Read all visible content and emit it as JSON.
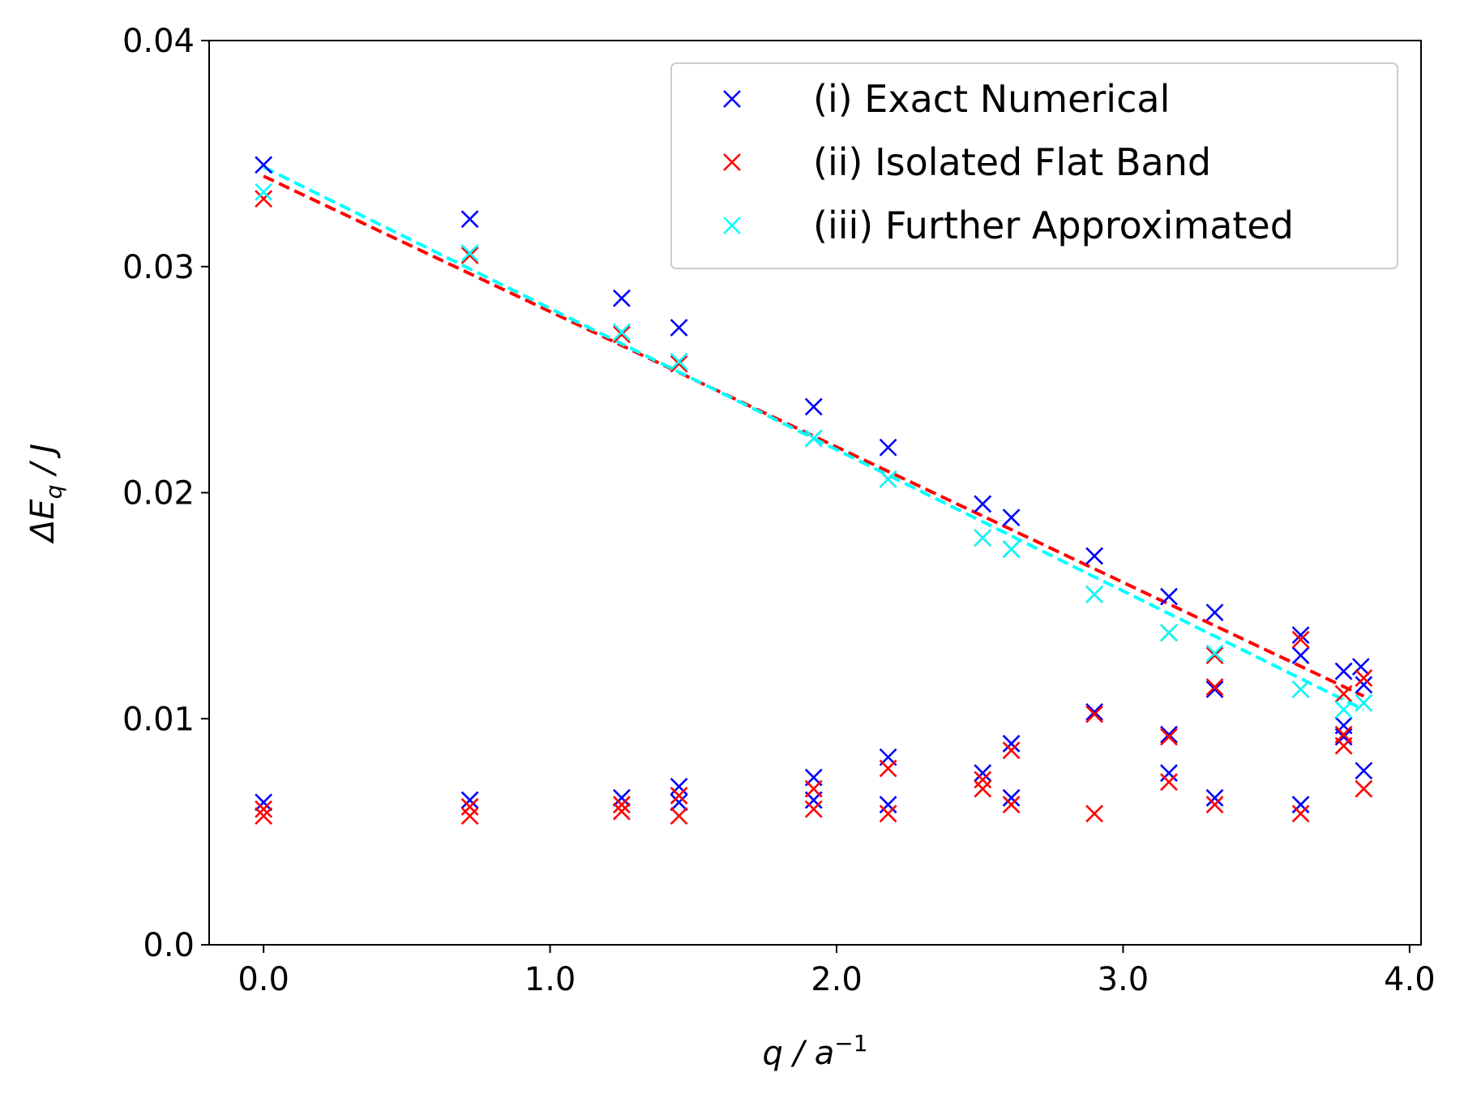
{
  "chart_data": {
    "type": "scatter",
    "title": "",
    "xlabel": "q / a",
    "xlabel_sup": "−1",
    "ylabel_prefix": "ΔE",
    "ylabel_sub": "q",
    "ylabel_suffix": " / J",
    "xlim": [
      -0.19,
      4.04
    ],
    "ylim": [
      0.0,
      0.04
    ],
    "xticks": [
      0.0,
      1.0,
      2.0,
      3.0,
      4.0
    ],
    "xtick_labels": [
      "0.0",
      "1.0",
      "2.0",
      "3.0",
      "4.0"
    ],
    "yticks": [
      0.0,
      0.01,
      0.02,
      0.03,
      0.04
    ],
    "ytick_labels": [
      "0.0",
      "0.01",
      "0.02",
      "0.03",
      "0.04"
    ],
    "grid": false,
    "legend_position": "top-right",
    "series": [
      {
        "name": "(i) Exact Numerical",
        "color": "#0000ff",
        "marker": "x",
        "upper": [
          [
            0.0,
            0.0345
          ],
          [
            0.72,
            0.0321
          ],
          [
            1.25,
            0.0286
          ],
          [
            1.45,
            0.0273
          ],
          [
            1.92,
            0.0238
          ],
          [
            2.18,
            0.022
          ],
          [
            2.51,
            0.0195
          ],
          [
            2.61,
            0.0189
          ],
          [
            2.9,
            0.0172
          ],
          [
            3.16,
            0.0154
          ],
          [
            3.32,
            0.0147
          ],
          [
            3.62,
            0.0137
          ],
          [
            3.62,
            0.0128
          ],
          [
            3.77,
            0.0121
          ],
          [
            3.83,
            0.0123
          ],
          [
            3.84,
            0.0115
          ]
        ],
        "lower": [
          [
            0.0,
            0.0063
          ],
          [
            0.72,
            0.0064
          ],
          [
            1.25,
            0.0065
          ],
          [
            1.45,
            0.007
          ],
          [
            1.45,
            0.0063
          ],
          [
            1.92,
            0.0074
          ],
          [
            1.92,
            0.0064
          ],
          [
            2.18,
            0.0083
          ],
          [
            2.18,
            0.0062
          ],
          [
            2.51,
            0.0076
          ],
          [
            2.61,
            0.0089
          ],
          [
            2.61,
            0.0065
          ],
          [
            2.9,
            0.0103
          ],
          [
            3.16,
            0.0093
          ],
          [
            3.16,
            0.0076
          ],
          [
            3.32,
            0.0113
          ],
          [
            3.32,
            0.0065
          ],
          [
            3.62,
            0.0062
          ],
          [
            3.77,
            0.0097
          ],
          [
            3.77,
            0.0092
          ],
          [
            3.84,
            0.0077
          ]
        ]
      },
      {
        "name": "(ii) Isolated Flat Band",
        "color": "#ff0000",
        "marker": "x",
        "upper": [
          [
            0.0,
            0.033
          ],
          [
            0.72,
            0.0305
          ],
          [
            1.25,
            0.027
          ],
          [
            1.45,
            0.0257
          ],
          [
            1.92,
            0.0224
          ],
          [
            2.18,
            0.0206
          ],
          [
            2.51,
            0.018
          ],
          [
            2.61,
            0.0175
          ],
          [
            2.9,
            0.0155
          ],
          [
            3.16,
            0.0138
          ],
          [
            3.32,
            0.0128
          ],
          [
            3.62,
            0.0135
          ],
          [
            3.62,
            0.0113
          ],
          [
            3.77,
            0.0111
          ],
          [
            3.84,
            0.0118
          ],
          [
            3.84,
            0.0107
          ]
        ],
        "lower": [
          [
            0.0,
            0.006
          ],
          [
            0.0,
            0.0057
          ],
          [
            0.72,
            0.0061
          ],
          [
            0.72,
            0.0057
          ],
          [
            1.25,
            0.0062
          ],
          [
            1.25,
            0.0059
          ],
          [
            1.45,
            0.0066
          ],
          [
            1.45,
            0.0057
          ],
          [
            1.92,
            0.0069
          ],
          [
            1.92,
            0.006
          ],
          [
            2.18,
            0.0078
          ],
          [
            2.18,
            0.0058
          ],
          [
            2.51,
            0.0073
          ],
          [
            2.51,
            0.0069
          ],
          [
            2.61,
            0.0086
          ],
          [
            2.61,
            0.0062
          ],
          [
            2.9,
            0.0102
          ],
          [
            2.9,
            0.0058
          ],
          [
            3.16,
            0.0092
          ],
          [
            3.16,
            0.0072
          ],
          [
            3.32,
            0.0114
          ],
          [
            3.32,
            0.0062
          ],
          [
            3.62,
            0.0058
          ],
          [
            3.77,
            0.0093
          ],
          [
            3.77,
            0.0088
          ],
          [
            3.84,
            0.0069
          ]
        ]
      },
      {
        "name": "(iii) Further Approximated",
        "color": "#00ffff",
        "marker": "x",
        "upper": [
          [
            0.0,
            0.0333
          ],
          [
            0.72,
            0.0306
          ],
          [
            1.25,
            0.0271
          ],
          [
            1.45,
            0.0258
          ],
          [
            1.92,
            0.0224
          ],
          [
            2.18,
            0.0206
          ],
          [
            2.51,
            0.018
          ],
          [
            2.61,
            0.0175
          ],
          [
            2.9,
            0.0155
          ],
          [
            3.16,
            0.0138
          ],
          [
            3.32,
            0.0129
          ],
          [
            3.62,
            0.0113
          ],
          [
            3.77,
            0.0104
          ],
          [
            3.84,
            0.0107
          ]
        ],
        "lower": []
      }
    ],
    "fit_lines": [
      {
        "series": "(ii) Isolated Flat Band",
        "color": "#ff0000",
        "style": "dashed",
        "x": [
          0.0,
          3.84
        ],
        "y": [
          0.034,
          0.011
        ]
      },
      {
        "series": "(iii) Further Approximated",
        "color": "#00ffff",
        "style": "dashed",
        "x": [
          0.0,
          3.84
        ],
        "y": [
          0.0344,
          0.0104
        ]
      }
    ]
  }
}
